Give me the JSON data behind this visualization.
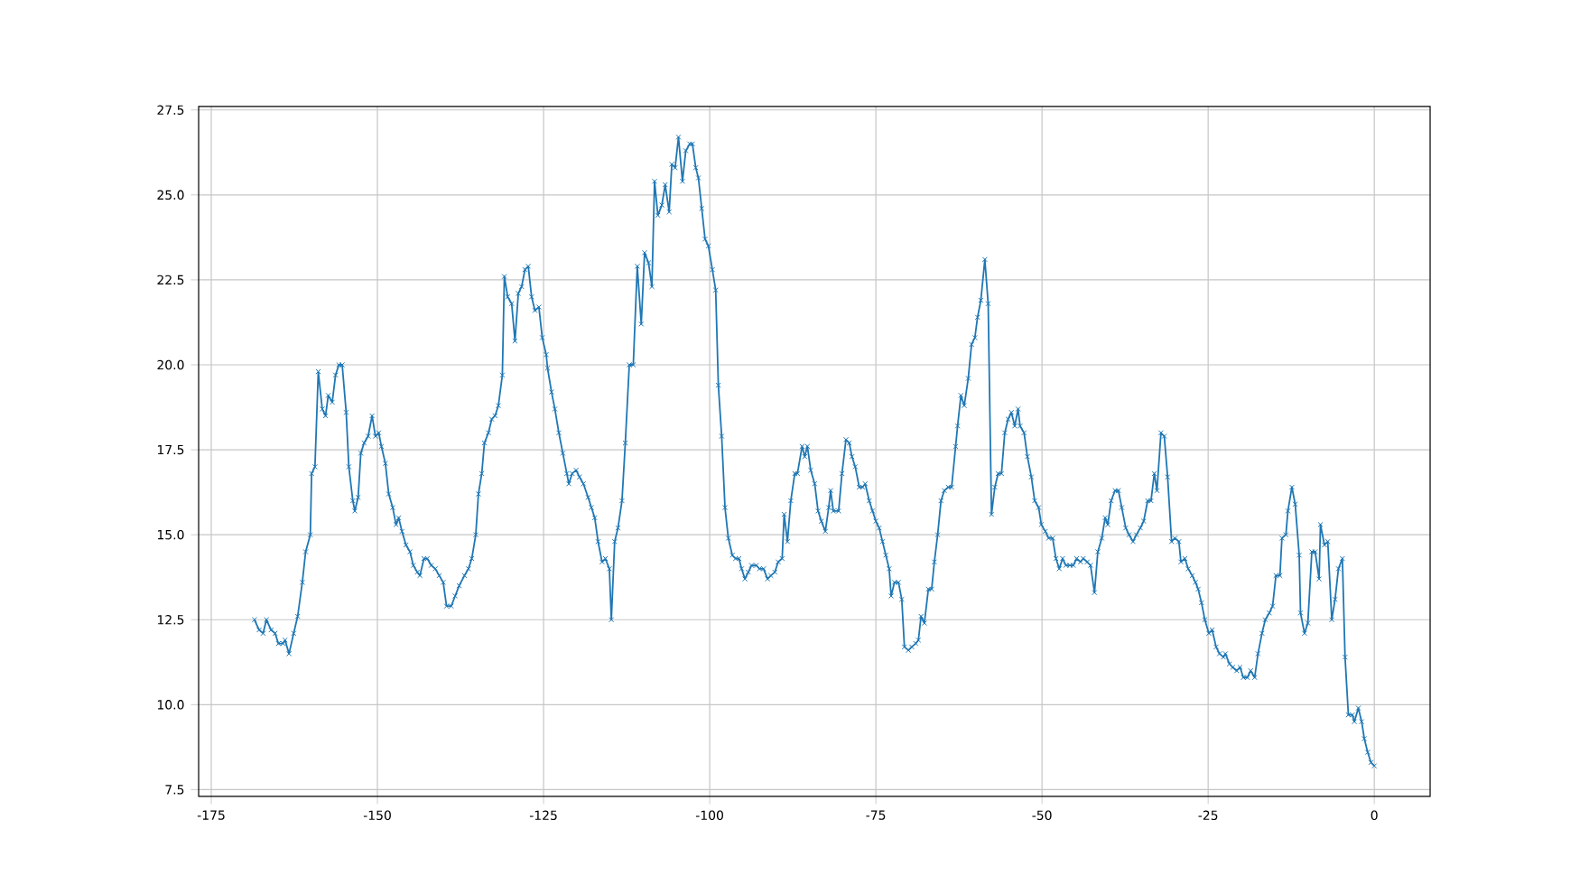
{
  "chart_data": {
    "type": "line",
    "color": "#1f77b4",
    "marker": "cross",
    "grid": true,
    "xlim": [
      -176.9,
      8.4
    ],
    "ylim": [
      7.3,
      27.6
    ],
    "xticks": [
      -175,
      -150,
      -125,
      -100,
      -75,
      -50,
      -25,
      0
    ],
    "yticks": [
      7.5,
      {
        "value": 10,
        "label": "10.0"
      },
      12.5,
      {
        "value": 15,
        "label": "15.0"
      },
      17.5,
      {
        "value": 20,
        "label": "20.0"
      },
      22.5,
      {
        "value": 25,
        "label": "25.0"
      },
      27.5
    ],
    "x": [
      -168.5,
      -167.8,
      -167.2,
      -166.7,
      -166.0,
      -165.4,
      -164.9,
      -164.2,
      -163.9,
      -163.3,
      -162.6,
      -162.0,
      -161.3,
      -160.8,
      -160.1,
      -159.9,
      -159.4,
      -158.9,
      -158.3,
      -157.8,
      -157.4,
      -156.8,
      -156.3,
      -155.8,
      -155.3,
      -154.7,
      -154.3,
      -153.7,
      -153.4,
      -152.9,
      -152.5,
      -152.0,
      -151.4,
      -150.8,
      -150.3,
      -149.8,
      -149.4,
      -148.8,
      -148.3,
      -147.7,
      -147.2,
      -146.8,
      -146.3,
      -145.7,
      -145.1,
      -144.6,
      -144.0,
      -143.6,
      -143.0,
      -142.5,
      -141.9,
      -141.3,
      -140.7,
      -140.1,
      -139.6,
      -138.9,
      -138.3,
      -137.7,
      -136.9,
      -136.3,
      -135.8,
      -135.2,
      -134.8,
      -134.3,
      -133.9,
      -133.3,
      -132.8,
      -132.3,
      -131.8,
      -131.2,
      -130.9,
      -130.4,
      -129.8,
      -129.3,
      -128.8,
      -128.3,
      -127.8,
      -127.3,
      -126.8,
      -126.3,
      -125.7,
      -125.2,
      -124.6,
      -124.4,
      -123.8,
      -123.3,
      -122.7,
      -122.1,
      -121.5,
      -121.2,
      -120.7,
      -120.1,
      -119.6,
      -119.0,
      -118.3,
      -117.8,
      -117.3,
      -116.8,
      -116.2,
      -115.7,
      -115.1,
      -114.8,
      -114.3,
      -113.8,
      -113.2,
      -112.7,
      -112.1,
      -111.5,
      -110.9,
      -110.3,
      -109.8,
      -109.2,
      -108.7,
      -108.3,
      -107.8,
      -107.2,
      -106.7,
      -106.1,
      -105.7,
      -105.2,
      -104.7,
      -104.1,
      -103.6,
      -103.0,
      -102.6,
      -102.1,
      -101.7,
      -101.2,
      -100.7,
      -100.2,
      -99.6,
      -99.1,
      -98.7,
      -98.2,
      -97.7,
      -97.2,
      -96.6,
      -96.1,
      -95.6,
      -95.2,
      -94.7,
      -94.2,
      -93.7,
      -93.0,
      -92.5,
      -91.9,
      -91.3,
      -90.8,
      -90.2,
      -89.7,
      -89.1,
      -88.8,
      -88.3,
      -87.8,
      -87.2,
      -86.8,
      -86.1,
      -85.7,
      -85.3,
      -84.8,
      -84.2,
      -83.7,
      -83.2,
      -82.6,
      -82.1,
      -81.8,
      -81.4,
      -80.6,
      -80.1,
      -79.5,
      -79.0,
      -78.6,
      -78.1,
      -77.5,
      -77.0,
      -76.6,
      -76.0,
      -75.5,
      -75.0,
      -74.5,
      -74.0,
      -73.5,
      -73.0,
      -72.7,
      -72.2,
      -71.6,
      -71.1,
      -70.7,
      -70.1,
      -69.6,
      -69.0,
      -68.6,
      -68.2,
      -67.7,
      -67.1,
      -66.6,
      -66.2,
      -65.7,
      -65.2,
      -64.7,
      -64.1,
      -63.6,
      -63.0,
      -62.7,
      -62.2,
      -61.7,
      -61.1,
      -60.6,
      -60.1,
      -59.7,
      -59.2,
      -58.6,
      -58.1,
      -57.6,
      -57.1,
      -56.6,
      -56.1,
      -55.6,
      -55.1,
      -54.6,
      -54.1,
      -53.6,
      -53.3,
      -52.7,
      -52.2,
      -51.6,
      -51.1,
      -50.5,
      -50.1,
      -49.5,
      -49.0,
      -48.4,
      -47.9,
      -47.4,
      -46.9,
      -46.4,
      -45.8,
      -45.3,
      -44.8,
      -44.2,
      -43.8,
      -43.2,
      -42.7,
      -42.1,
      -41.6,
      -41.0,
      -40.5,
      -40.1,
      -39.6,
      -39.0,
      -38.5,
      -38.0,
      -37.4,
      -36.9,
      -36.3,
      -35.8,
      -35.2,
      -34.7,
      -34.1,
      -33.6,
      -33.1,
      -32.7,
      -32.1,
      -31.6,
      -31.1,
      -30.5,
      -30.0,
      -29.4,
      -29.1,
      -28.5,
      -28.0,
      -27.4,
      -26.9,
      -26.5,
      -26.0,
      -25.5,
      -24.9,
      -24.4,
      -23.8,
      -23.3,
      -22.7,
      -22.4,
      -21.8,
      -21.3,
      -20.7,
      -20.2,
      -19.7,
      -19.1,
      -18.6,
      -18.0,
      -17.5,
      -16.9,
      -16.4,
      -15.8,
      -15.3,
      -14.8,
      -14.2,
      -13.9,
      -13.3,
      -13.0,
      -12.4,
      -11.9,
      -11.3,
      -11.1,
      -10.5,
      -10.0,
      -9.4,
      -8.9,
      -8.3,
      -8.1,
      -7.5,
      -7.0,
      -6.4,
      -5.9,
      -5.4,
      -4.8,
      -4.4,
      -3.9,
      -3.3,
      -3.0,
      -2.4,
      -1.9,
      -1.5,
      -1.0,
      -0.5,
      0.0
    ],
    "values": [
      12.5,
      12.2,
      12.1,
      12.5,
      12.2,
      12.1,
      11.8,
      11.8,
      11.9,
      11.5,
      12.1,
      12.6,
      13.6,
      14.5,
      15.0,
      16.8,
      17.0,
      19.8,
      18.7,
      18.5,
      19.1,
      18.9,
      19.7,
      20.0,
      20.0,
      18.6,
      17.0,
      16.0,
      15.7,
      16.1,
      17.4,
      17.7,
      17.9,
      18.5,
      17.9,
      18.0,
      17.6,
      17.1,
      16.2,
      15.8,
      15.3,
      15.5,
      15.1,
      14.7,
      14.5,
      14.1,
      13.9,
      13.8,
      14.3,
      14.3,
      14.1,
      14.0,
      13.8,
      13.6,
      12.9,
      12.9,
      13.2,
      13.5,
      13.8,
      14.0,
      14.3,
      15.0,
      16.2,
      16.8,
      17.7,
      18.0,
      18.4,
      18.5,
      18.8,
      19.7,
      22.6,
      22.0,
      21.8,
      20.7,
      22.1,
      22.3,
      22.8,
      22.9,
      22.0,
      21.6,
      21.7,
      20.8,
      20.3,
      19.9,
      19.2,
      18.7,
      18.0,
      17.4,
      16.8,
      16.5,
      16.8,
      16.9,
      16.7,
      16.5,
      16.1,
      15.8,
      15.5,
      14.8,
      14.2,
      14.3,
      14.0,
      12.5,
      14.8,
      15.2,
      16.0,
      17.7,
      20.0,
      20.0,
      22.9,
      21.2,
      23.3,
      23.0,
      22.3,
      25.4,
      24.4,
      24.7,
      25.3,
      24.5,
      25.9,
      25.8,
      26.7,
      25.4,
      26.3,
      26.5,
      26.5,
      25.8,
      25.5,
      24.6,
      23.7,
      23.5,
      22.8,
      22.2,
      19.4,
      17.9,
      15.8,
      14.9,
      14.4,
      14.3,
      14.3,
      14.0,
      13.7,
      13.9,
      14.1,
      14.1,
      14.0,
      14.0,
      13.7,
      13.8,
      13.9,
      14.2,
      14.3,
      15.6,
      14.8,
      16.0,
      16.8,
      16.8,
      17.6,
      17.3,
      17.6,
      16.9,
      16.5,
      15.7,
      15.4,
      15.1,
      15.8,
      16.3,
      15.7,
      15.7,
      16.8,
      17.8,
      17.7,
      17.3,
      17.0,
      16.4,
      16.4,
      16.5,
      16.0,
      15.7,
      15.4,
      15.2,
      14.8,
      14.4,
      14.0,
      13.2,
      13.6,
      13.6,
      13.1,
      11.7,
      11.6,
      11.7,
      11.8,
      11.9,
      12.6,
      12.4,
      13.4,
      13.4,
      14.2,
      15.0,
      16.0,
      16.3,
      16.4,
      16.4,
      17.6,
      18.2,
      19.1,
      18.8,
      19.6,
      20.6,
      20.8,
      21.4,
      21.9,
      23.1,
      21.8,
      15.6,
      16.4,
      16.8,
      16.8,
      18.0,
      18.4,
      18.6,
      18.2,
      18.7,
      18.2,
      18.0,
      17.3,
      16.7,
      16.0,
      15.8,
      15.3,
      15.1,
      14.9,
      14.9,
      14.3,
      14.0,
      14.3,
      14.1,
      14.1,
      14.1,
      14.3,
      14.2,
      14.3,
      14.2,
      14.1,
      13.3,
      14.5,
      14.9,
      15.5,
      15.3,
      16.0,
      16.3,
      16.3,
      15.8,
      15.2,
      15.0,
      14.8,
      15.0,
      15.2,
      15.4,
      16.0,
      16.0,
      16.8,
      16.3,
      18.0,
      17.9,
      16.7,
      14.8,
      14.9,
      14.8,
      14.2,
      14.3,
      14.0,
      13.8,
      13.6,
      13.4,
      13.0,
      12.5,
      12.1,
      12.2,
      11.7,
      11.5,
      11.4,
      11.5,
      11.2,
      11.1,
      11.0,
      11.1,
      10.8,
      10.8,
      11.0,
      10.8,
      11.5,
      12.1,
      12.5,
      12.7,
      12.9,
      13.8,
      13.8,
      14.9,
      15.0,
      15.7,
      16.4,
      15.9,
      14.4,
      12.7,
      12.1,
      12.4,
      14.5,
      14.5,
      13.7,
      15.3,
      14.7,
      14.8,
      12.5,
      13.1,
      14.0,
      14.3,
      11.4,
      9.7,
      9.7,
      9.5,
      9.9,
      9.5,
      9.0,
      8.6,
      8.3,
      8.2
    ]
  }
}
